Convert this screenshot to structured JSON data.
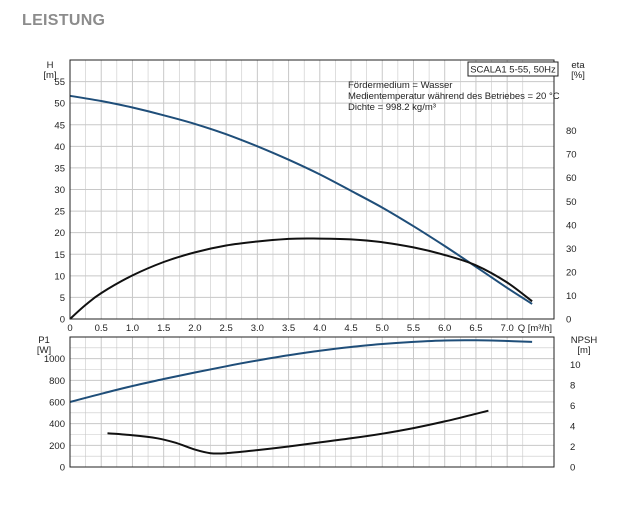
{
  "page": {
    "title": "LEISTUNG"
  },
  "info": {
    "model": "SCALA1 5-55, 50Hz",
    "lines": [
      "Fördermedium = Wasser",
      "Medientemperatur während des Betriebes = 20 °C",
      "Dichte = 998.2 kg/m³"
    ]
  },
  "colors": {
    "grid": "#c8c8c8",
    "frame": "#222222",
    "blue_curve": "#1f4e79",
    "black_curve": "#111111"
  },
  "chart_data": [
    {
      "type": "line",
      "name": "upper",
      "xlabel": "Q [m³/h]",
      "ylabel": "H [m]",
      "ylabel_name": "H",
      "ylabel_unit": "[m]",
      "y2label_name": "eta",
      "y2label_unit": "[%]",
      "xlim": [
        0,
        7.75
      ],
      "ylim": [
        0,
        60
      ],
      "y2lim": [
        0,
        110
      ],
      "x_ticks": [
        "0",
        "0.5",
        "1.0",
        "1.5",
        "2.0",
        "2.5",
        "3.0",
        "3.5",
        "4.0",
        "4.5",
        "5.0",
        "5.5",
        "6.0",
        "6.5",
        "7.0"
      ],
      "x_tick_values": [
        0,
        0.5,
        1.0,
        1.5,
        2.0,
        2.5,
        3.0,
        3.5,
        4.0,
        4.5,
        5.0,
        5.5,
        6.0,
        6.5,
        7.0
      ],
      "y_ticks": [
        0,
        5,
        10,
        15,
        20,
        25,
        30,
        35,
        40,
        45,
        50,
        55
      ],
      "y2_ticks": [
        0,
        10,
        20,
        30,
        40,
        50,
        60,
        70,
        80
      ],
      "grid": true,
      "series": [
        {
          "axis": "left",
          "color": "blue",
          "points": [
            [
              0,
              51.7
            ],
            [
              0.5,
              50.5
            ],
            [
              1.0,
              49.0
            ],
            [
              1.5,
              47.2
            ],
            [
              2.0,
              45.2
            ],
            [
              2.5,
              42.8
            ],
            [
              3.0,
              40.0
            ],
            [
              3.5,
              36.9
            ],
            [
              4.0,
              33.5
            ],
            [
              4.5,
              29.7
            ],
            [
              5.0,
              25.8
            ],
            [
              5.5,
              21.5
            ],
            [
              6.0,
              16.9
            ],
            [
              6.5,
              12.1
            ],
            [
              7.0,
              7.2
            ],
            [
              7.4,
              3.5
            ]
          ]
        },
        {
          "axis": "right",
          "color": "black",
          "points": [
            [
              0,
              0
            ],
            [
              0.25,
              6
            ],
            [
              0.5,
              11
            ],
            [
              1.0,
              18.5
            ],
            [
              1.5,
              24.2
            ],
            [
              2.0,
              28.3
            ],
            [
              2.5,
              31.2
            ],
            [
              3.0,
              32.9
            ],
            [
              3.5,
              34.0
            ],
            [
              3.9,
              34.2
            ],
            [
              4.5,
              33.8
            ],
            [
              5.0,
              32.6
            ],
            [
              5.5,
              30.4
            ],
            [
              6.0,
              27.2
            ],
            [
              6.5,
              22.8
            ],
            [
              7.0,
              15.5
            ],
            [
              7.4,
              7.5
            ]
          ]
        }
      ]
    },
    {
      "type": "line",
      "name": "lower",
      "ylabel": "P1 [W]",
      "ylabel_name": "P1",
      "ylabel_unit": "[W]",
      "y2label_name": "NPSH",
      "y2label_unit": "[m]",
      "xlim": [
        0,
        7.75
      ],
      "ylim": [
        0,
        1200
      ],
      "y2lim": [
        0,
        12.7
      ],
      "y_ticks": [
        0,
        200,
        400,
        600,
        800,
        1000
      ],
      "y2_ticks": [
        0,
        2,
        4,
        6,
        8,
        10
      ],
      "grid": true,
      "series": [
        {
          "axis": "left",
          "color": "blue",
          "points": [
            [
              0,
              600
            ],
            [
              0.5,
              676
            ],
            [
              1.0,
              748
            ],
            [
              1.5,
              812
            ],
            [
              2.0,
              872
            ],
            [
              2.5,
              930
            ],
            [
              3.0,
              983
            ],
            [
              3.5,
              1031
            ],
            [
              4.0,
              1073
            ],
            [
              4.5,
              1108
            ],
            [
              5.0,
              1135
            ],
            [
              5.5,
              1155
            ],
            [
              6.0,
              1168
            ],
            [
              6.5,
              1170
            ],
            [
              7.0,
              1163
            ],
            [
              7.4,
              1155
            ]
          ]
        },
        {
          "axis": "right",
          "color": "black",
          "points": [
            [
              0.6,
              3.3
            ],
            [
              1.0,
              3.1
            ],
            [
              1.4,
              2.8
            ],
            [
              1.7,
              2.35
            ],
            [
              2.0,
              1.7
            ],
            [
              2.25,
              1.35
            ],
            [
              2.5,
              1.35
            ],
            [
              3.0,
              1.65
            ],
            [
              3.5,
              2.0
            ],
            [
              4.0,
              2.4
            ],
            [
              4.5,
              2.8
            ],
            [
              5.0,
              3.25
            ],
            [
              5.5,
              3.8
            ],
            [
              6.0,
              4.45
            ],
            [
              6.5,
              5.2
            ],
            [
              6.7,
              5.5
            ]
          ]
        }
      ]
    }
  ]
}
